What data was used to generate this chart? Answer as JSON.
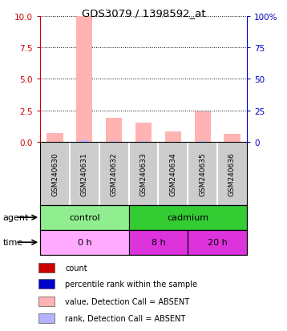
{
  "title": "GDS3079 / 1398592_at",
  "samples": [
    "GSM240630",
    "GSM240631",
    "GSM240632",
    "GSM240633",
    "GSM240634",
    "GSM240635",
    "GSM240636"
  ],
  "value_bars": [
    0.7,
    10.0,
    1.9,
    1.55,
    0.85,
    2.4,
    0.65
  ],
  "rank_bars": [
    0.0,
    1.35,
    0.35,
    0.38,
    0.22,
    0.52,
    0.18
  ],
  "left_ylim": [
    0,
    10
  ],
  "right_ylim": [
    0,
    100
  ],
  "left_yticks": [
    0,
    2.5,
    5,
    7.5,
    10
  ],
  "right_yticks": [
    0,
    25,
    50,
    75,
    100
  ],
  "right_yticklabels": [
    "0",
    "25",
    "50",
    "75",
    "100%"
  ],
  "agent_labels": [
    {
      "text": "control",
      "span": [
        0,
        3
      ],
      "color": "#90EE90"
    },
    {
      "text": "cadmium",
      "span": [
        3,
        7
      ],
      "color": "#33CC33"
    }
  ],
  "time_labels": [
    {
      "text": "0 h",
      "span": [
        0,
        3
      ],
      "color": "#FFAAFF"
    },
    {
      "text": "8 h",
      "span": [
        3,
        5
      ],
      "color": "#DD33DD"
    },
    {
      "text": "20 h",
      "span": [
        5,
        7
      ],
      "color": "#DD33DD"
    }
  ],
  "value_color_absent": "#FFB3B3",
  "rank_color_absent": "#B3B3FF",
  "count_color": "#CC0000",
  "percentile_color": "#0000CC",
  "left_tick_color": "#CC0000",
  "right_tick_color": "#0000BB",
  "sample_bg_color": "#CCCCCC",
  "legend_items": [
    {
      "label": "count",
      "color": "#CC0000"
    },
    {
      "label": "percentile rank within the sample",
      "color": "#0000CC"
    },
    {
      "label": "value, Detection Call = ABSENT",
      "color": "#FFB3B3"
    },
    {
      "label": "rank, Detection Call = ABSENT",
      "color": "#B3B3FF"
    }
  ]
}
